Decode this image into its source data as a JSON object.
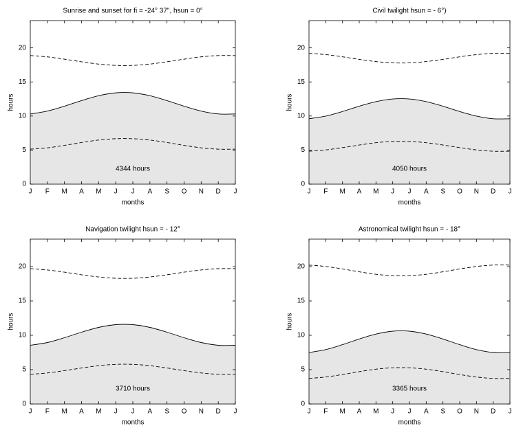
{
  "chart_data": [
    {
      "type": "line",
      "title": "Sunrise and sunset for fi = -24° 37\", hsun = 0°",
      "xlabel": "months",
      "ylabel": "hours",
      "annotation": "4344 hours",
      "x": [
        0,
        1,
        2,
        3,
        4,
        5,
        6,
        7,
        8,
        9,
        10,
        11,
        12
      ],
      "series": [
        {
          "color": "#000000",
          "style": "solid",
          "fill": "#e6e6e6",
          "values": [
            10.3,
            10.72,
            11.44,
            12.26,
            12.98,
            13.4,
            13.4,
            12.98,
            12.26,
            11.44,
            10.72,
            10.3,
            10.3
          ]
        },
        {
          "color": "#000000",
          "style": "dashed",
          "values": [
            5.13,
            5.33,
            5.69,
            6.11,
            6.47,
            6.67,
            6.67,
            6.47,
            6.11,
            5.69,
            5.33,
            5.13,
            5.13
          ]
        },
        {
          "color": "#000000",
          "style": "dashed",
          "values": [
            18.87,
            18.68,
            18.34,
            17.96,
            17.62,
            17.43,
            17.43,
            17.62,
            17.96,
            18.34,
            18.68,
            18.87,
            18.87
          ]
        }
      ],
      "xlim": [
        0,
        12
      ],
      "xticks": [
        {
          "value": 0,
          "label": "J"
        },
        {
          "value": 1,
          "label": "F"
        },
        {
          "value": 2,
          "label": "M"
        },
        {
          "value": 3,
          "label": "A"
        },
        {
          "value": 4,
          "label": "M"
        },
        {
          "value": 5,
          "label": "J"
        },
        {
          "value": 6,
          "label": "J"
        },
        {
          "value": 7,
          "label": "A"
        },
        {
          "value": 8,
          "label": "S"
        },
        {
          "value": 9,
          "label": "O"
        },
        {
          "value": 10,
          "label": "N"
        },
        {
          "value": 11,
          "label": "D"
        },
        {
          "value": 12,
          "label": "J"
        }
      ],
      "ylim": [
        0,
        24
      ],
      "yticks": [
        0,
        5,
        10,
        15,
        20
      ]
    },
    {
      "type": "line",
      "title": "Civil twilight hsun = - 6°)",
      "xlabel": "months",
      "ylabel": "hours",
      "annotation": "4050 hours",
      "x": [
        0,
        1,
        2,
        3,
        4,
        5,
        6,
        7,
        8,
        9,
        10,
        11,
        12
      ],
      "series": [
        {
          "color": "#000000",
          "style": "solid",
          "fill": "#e6e6e6",
          "values": [
            9.6,
            9.99,
            10.66,
            11.44,
            12.11,
            12.5,
            12.5,
            12.11,
            11.44,
            10.66,
            9.99,
            9.6,
            9.6
          ]
        },
        {
          "color": "#000000",
          "style": "dashed",
          "values": [
            4.83,
            5.02,
            5.36,
            5.74,
            6.08,
            6.27,
            6.27,
            6.08,
            5.74,
            5.36,
            5.02,
            4.83,
            4.83
          ]
        },
        {
          "color": "#000000",
          "style": "dashed",
          "values": [
            19.2,
            19.01,
            18.69,
            18.31,
            17.99,
            17.8,
            17.8,
            17.99,
            18.31,
            18.69,
            19.01,
            19.2,
            19.2
          ]
        }
      ],
      "xlim": [
        0,
        12
      ],
      "xticks": [
        {
          "value": 0,
          "label": "J"
        },
        {
          "value": 1,
          "label": "F"
        },
        {
          "value": 2,
          "label": "M"
        },
        {
          "value": 3,
          "label": "A"
        },
        {
          "value": 4,
          "label": "M"
        },
        {
          "value": 5,
          "label": "J"
        },
        {
          "value": 6,
          "label": "J"
        },
        {
          "value": 7,
          "label": "A"
        },
        {
          "value": 8,
          "label": "S"
        },
        {
          "value": 9,
          "label": "O"
        },
        {
          "value": 10,
          "label": "N"
        },
        {
          "value": 11,
          "label": "D"
        },
        {
          "value": 12,
          "label": "J"
        }
      ],
      "ylim": [
        0,
        24
      ],
      "yticks": [
        0,
        5,
        10,
        15,
        20
      ]
    },
    {
      "type": "line",
      "title": "Navigation twilight hsun = - 12°",
      "xlabel": "months",
      "ylabel": "hours",
      "annotation": "3710 hours",
      "x": [
        0,
        1,
        2,
        3,
        4,
        5,
        6,
        7,
        8,
        9,
        10,
        11,
        12
      ],
      "series": [
        {
          "color": "#000000",
          "style": "solid",
          "fill": "#e6e6e6",
          "values": [
            8.55,
            8.95,
            9.65,
            10.45,
            11.15,
            11.55,
            11.55,
            11.15,
            10.45,
            9.65,
            8.95,
            8.55,
            8.55
          ]
        },
        {
          "color": "#000000",
          "style": "dashed",
          "values": [
            4.33,
            4.52,
            4.86,
            5.24,
            5.58,
            5.77,
            5.77,
            5.58,
            5.24,
            4.86,
            4.52,
            4.33,
            4.33
          ]
        },
        {
          "color": "#000000",
          "style": "dashed",
          "values": [
            19.7,
            19.51,
            19.19,
            18.81,
            18.49,
            18.3,
            18.3,
            18.49,
            18.81,
            19.19,
            19.51,
            19.7,
            19.7
          ]
        }
      ],
      "xlim": [
        0,
        12
      ],
      "xticks": [
        {
          "value": 0,
          "label": "J"
        },
        {
          "value": 1,
          "label": "F"
        },
        {
          "value": 2,
          "label": "M"
        },
        {
          "value": 3,
          "label": "A"
        },
        {
          "value": 4,
          "label": "M"
        },
        {
          "value": 5,
          "label": "J"
        },
        {
          "value": 6,
          "label": "J"
        },
        {
          "value": 7,
          "label": "A"
        },
        {
          "value": 8,
          "label": "S"
        },
        {
          "value": 9,
          "label": "O"
        },
        {
          "value": 10,
          "label": "N"
        },
        {
          "value": 11,
          "label": "D"
        },
        {
          "value": 12,
          "label": "J"
        }
      ],
      "ylim": [
        0,
        24
      ],
      "yticks": [
        0,
        5,
        10,
        15,
        20
      ]
    },
    {
      "type": "line",
      "title": "Astronomical twilight hsun = - 18°",
      "xlabel": "months",
      "ylabel": "hours",
      "annotation": "3365 hours",
      "x": [
        0,
        1,
        2,
        3,
        4,
        5,
        6,
        7,
        8,
        9,
        10,
        11,
        12
      ],
      "series": [
        {
          "color": "#000000",
          "style": "solid",
          "fill": "#e6e6e6",
          "values": [
            7.5,
            7.92,
            8.64,
            9.46,
            10.18,
            10.6,
            10.6,
            10.18,
            9.46,
            8.64,
            7.92,
            7.5,
            7.5
          ]
        },
        {
          "color": "#000000",
          "style": "dashed",
          "values": [
            3.73,
            3.93,
            4.29,
            4.71,
            5.07,
            5.27,
            5.27,
            5.07,
            4.71,
            4.29,
            3.93,
            3.73,
            3.73
          ]
        },
        {
          "color": "#000000",
          "style": "dashed",
          "values": [
            20.22,
            20.02,
            19.66,
            19.24,
            18.88,
            18.68,
            18.68,
            18.88,
            19.24,
            19.66,
            20.02,
            20.22,
            20.22
          ]
        }
      ],
      "xlim": [
        0,
        12
      ],
      "xticks": [
        {
          "value": 0,
          "label": "J"
        },
        {
          "value": 1,
          "label": "F"
        },
        {
          "value": 2,
          "label": "M"
        },
        {
          "value": 3,
          "label": "A"
        },
        {
          "value": 4,
          "label": "M"
        },
        {
          "value": 5,
          "label": "J"
        },
        {
          "value": 6,
          "label": "J"
        },
        {
          "value": 7,
          "label": "A"
        },
        {
          "value": 8,
          "label": "S"
        },
        {
          "value": 9,
          "label": "O"
        },
        {
          "value": 10,
          "label": "N"
        },
        {
          "value": 11,
          "label": "D"
        },
        {
          "value": 12,
          "label": "J"
        }
      ],
      "ylim": [
        0,
        24
      ],
      "yticks": [
        0,
        5,
        10,
        15,
        20
      ]
    }
  ]
}
